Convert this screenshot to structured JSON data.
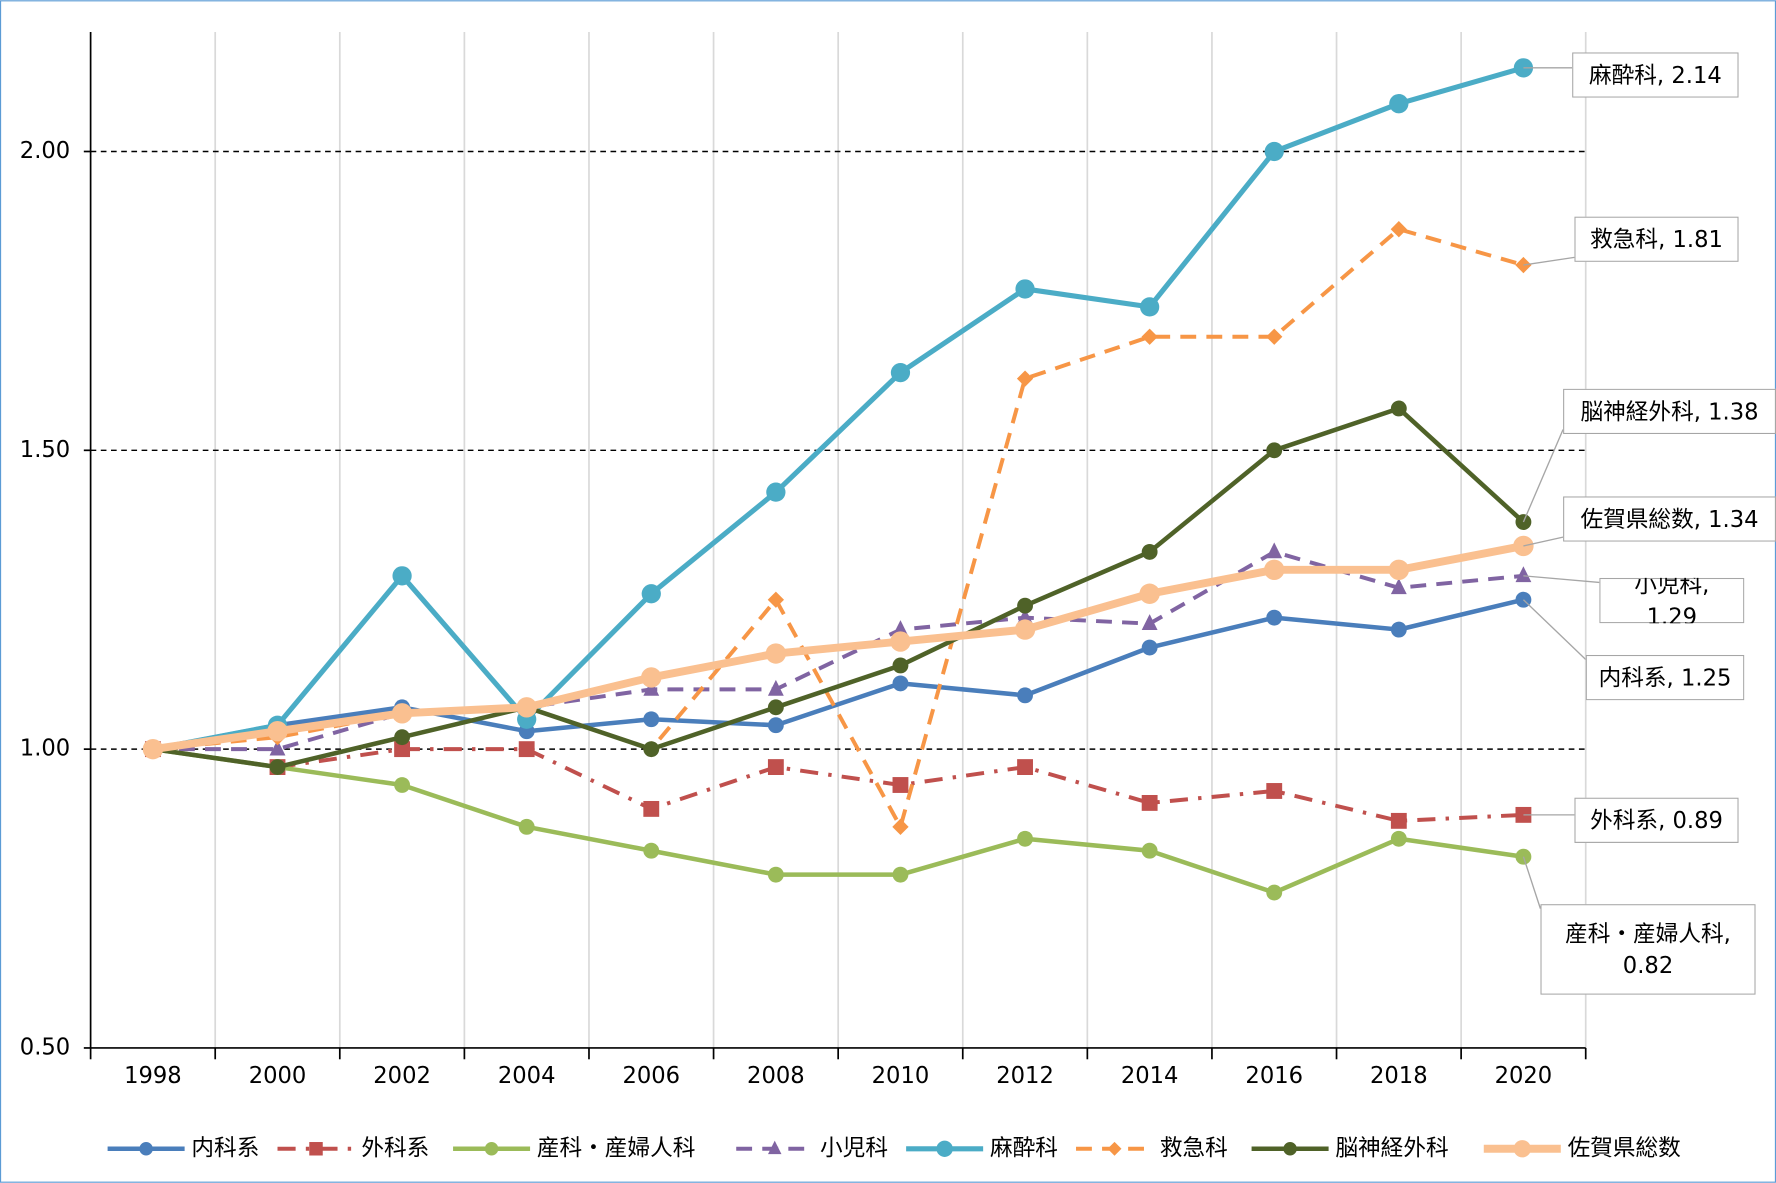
{
  "chart_data": {
    "type": "line",
    "categories": [
      "1998",
      "2000",
      "2002",
      "2004",
      "2006",
      "2008",
      "2010",
      "2012",
      "2014",
      "2016",
      "2018",
      "2020"
    ],
    "ylim": [
      0.5,
      2.2
    ],
    "yticks": [
      {
        "value": 0.5,
        "label": "0.50"
      },
      {
        "value": 1.0,
        "label": "1.00"
      },
      {
        "value": 1.5,
        "label": "1.50"
      },
      {
        "value": 2.0,
        "label": "2.00"
      }
    ],
    "grid": true,
    "legend": "bottom",
    "series": [
      {
        "name": "内科系",
        "color": "#4a7ebb",
        "marker": "circle",
        "dash": "solid",
        "values": [
          1.0,
          1.04,
          1.07,
          1.03,
          1.05,
          1.04,
          1.11,
          1.09,
          1.17,
          1.22,
          1.2,
          1.25
        ],
        "value_labels": [
          null,
          null,
          null,
          null,
          null,
          null,
          null,
          null,
          null,
          null,
          null,
          "内科系, 1.25"
        ]
      },
      {
        "name": "外科系",
        "color": "#c0504d",
        "marker": "square",
        "dash": "dashdot",
        "values": [
          1.0,
          0.97,
          1.0,
          1.0,
          0.9,
          0.97,
          0.94,
          0.97,
          0.91,
          0.93,
          0.88,
          0.89
        ],
        "value_labels": [
          null,
          null,
          null,
          null,
          null,
          null,
          null,
          null,
          null,
          null,
          null,
          "外科系, 0.89"
        ]
      },
      {
        "name": "産科・産婦人科",
        "color": "#9bbb59",
        "marker": "circle",
        "dash": "solid",
        "values": [
          1.0,
          0.97,
          0.94,
          0.87,
          0.83,
          0.79,
          0.79,
          0.85,
          0.83,
          0.76,
          0.85,
          0.82
        ],
        "value_labels": [
          null,
          null,
          null,
          null,
          null,
          null,
          null,
          null,
          null,
          null,
          null,
          "産科・産婦人科, 0.82"
        ]
      },
      {
        "name": "小児科",
        "color": "#8064a2",
        "marker": "triangle",
        "dash": "dashed",
        "values": [
          1.0,
          1.0,
          1.06,
          1.07,
          1.1,
          1.1,
          1.2,
          1.22,
          1.21,
          1.33,
          1.27,
          1.29
        ],
        "value_labels": [
          null,
          null,
          null,
          null,
          null,
          null,
          null,
          null,
          null,
          null,
          null,
          "小児科, 1.29"
        ]
      },
      {
        "name": "麻酔科",
        "color": "#4bacc6",
        "marker": "circle",
        "dash": "solid",
        "values": [
          1.0,
          1.04,
          1.29,
          1.05,
          1.26,
          1.43,
          1.63,
          1.77,
          1.74,
          2.0,
          2.08,
          2.14
        ],
        "value_labels": [
          null,
          null,
          null,
          null,
          null,
          null,
          null,
          null,
          null,
          null,
          null,
          "麻酔科, 2.14"
        ]
      },
      {
        "name": "救急科",
        "color": "#f79646",
        "marker": "diamond",
        "dash": "dashed",
        "values": [
          1.0,
          1.02,
          1.06,
          1.07,
          1.0,
          1.25,
          0.87,
          1.62,
          1.69,
          1.69,
          1.87,
          1.81
        ],
        "value_labels": [
          null,
          null,
          null,
          null,
          null,
          null,
          null,
          null,
          null,
          null,
          null,
          "救急科, 1.81"
        ]
      },
      {
        "name": "脳神経外科",
        "color": "#4f6228",
        "marker": "circle",
        "dash": "solid",
        "values": [
          1.0,
          0.97,
          1.02,
          1.07,
          1.0,
          1.07,
          1.14,
          1.24,
          1.33,
          1.5,
          1.57,
          1.38
        ],
        "value_labels": [
          null,
          null,
          null,
          null,
          null,
          null,
          null,
          null,
          null,
          null,
          null,
          "脳神経外科, 1.38"
        ]
      },
      {
        "name": "佐賀県総数",
        "color": "#fac090",
        "marker": "circle",
        "dash": "solid",
        "values": [
          1.0,
          1.03,
          1.06,
          1.07,
          1.12,
          1.16,
          1.18,
          1.2,
          1.26,
          1.3,
          1.3,
          1.34
        ],
        "value_labels": [
          null,
          null,
          null,
          null,
          null,
          null,
          null,
          null,
          null,
          null,
          null,
          "佐賀県総数, 1.34"
        ]
      }
    ]
  }
}
